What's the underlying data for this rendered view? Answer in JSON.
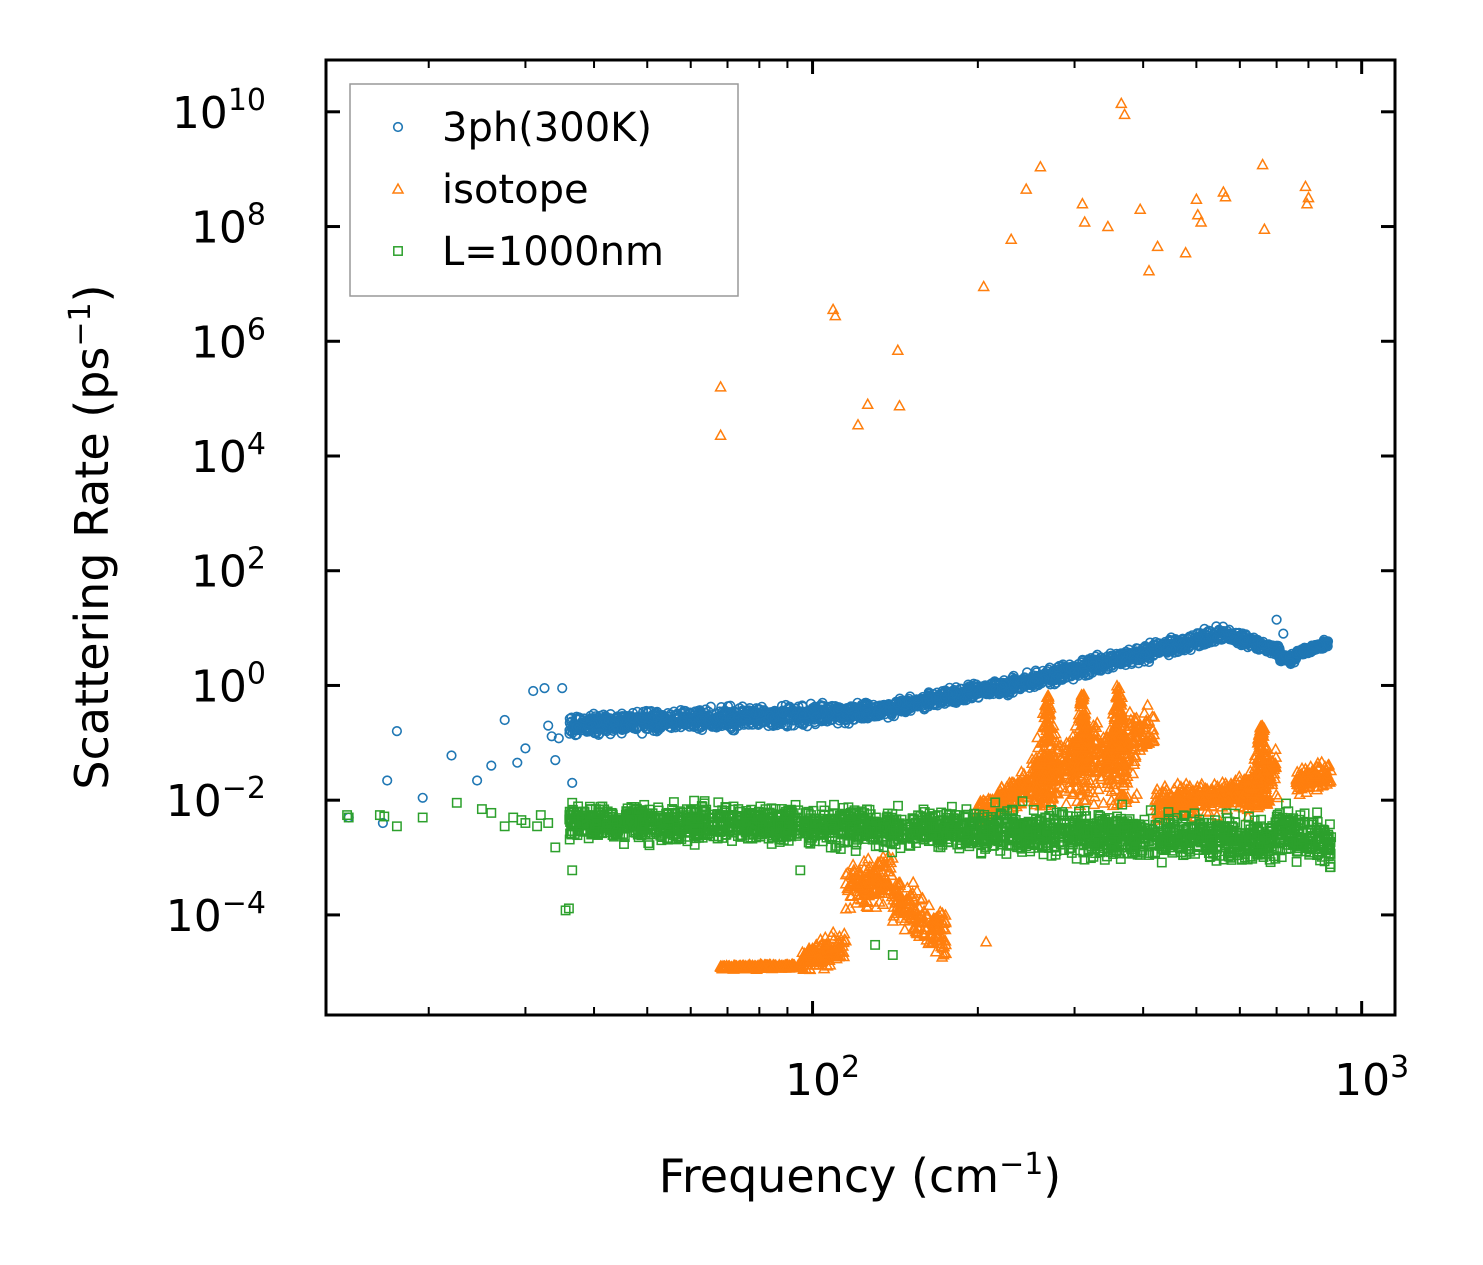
{
  "chart_data": {
    "type": "scatter",
    "xscale": "log",
    "yscale": "log",
    "xlim": [
      13,
      1150
    ],
    "ylim": [
      1.8e-06,
      80000000000
    ],
    "xlabel": "Frequency (cm",
    "xlabel_sup": "−1",
    "xlabel_close": ")",
    "ylabel": "Scattering Rate (ps",
    "ylabel_sup": "−1",
    "ylabel_close": ")",
    "legend_position": "upper-left",
    "x_major_ticks": [
      {
        "value": 100,
        "base": "10",
        "exp": "2"
      },
      {
        "value": 1000,
        "base": "10",
        "exp": "3"
      }
    ],
    "x_minor_ticks": [
      20,
      30,
      40,
      50,
      60,
      70,
      80,
      90,
      200,
      300,
      400,
      500,
      600,
      700,
      800,
      900
    ],
    "y_major_ticks": [
      {
        "value": 0.0001,
        "base": "10",
        "exp": "−4"
      },
      {
        "value": 0.01,
        "base": "10",
        "exp": "−2"
      },
      {
        "value": 1,
        "base": "10",
        "exp": "0"
      },
      {
        "value": 100,
        "base": "10",
        "exp": "2"
      },
      {
        "value": 10000,
        "base": "10",
        "exp": "4"
      },
      {
        "value": 1000000,
        "base": "10",
        "exp": "6"
      },
      {
        "value": 100000000,
        "base": "10",
        "exp": "8"
      },
      {
        "value": 10000000000,
        "base": "10",
        "exp": "10"
      }
    ],
    "series": [
      {
        "name": "3ph(300K)",
        "marker": "circle",
        "color": "#1f77b4",
        "sparse_points": [
          [
            14.3,
            0.005
          ],
          [
            16.5,
            0.004
          ],
          [
            17.5,
            0.16
          ],
          [
            16.8,
            0.022
          ],
          [
            19.5,
            0.011
          ],
          [
            22,
            0.06
          ],
          [
            24.5,
            0.022
          ],
          [
            26,
            0.04
          ],
          [
            27.5,
            0.25
          ],
          [
            29,
            0.045
          ],
          [
            30,
            0.08
          ],
          [
            31,
            0.8
          ],
          [
            32.5,
            0.9
          ],
          [
            33,
            0.2
          ],
          [
            33.5,
            0.13
          ],
          [
            34,
            0.05
          ],
          [
            34.5,
            0.12
          ],
          [
            35,
            0.9
          ],
          [
            36.5,
            0.02
          ]
        ],
        "dense_bands": [
          {
            "x": [
              36,
              130
            ],
            "y": [
              0.2,
              0.35
            ],
            "spread_decades": 0.25
          },
          {
            "x": [
              130,
              250
            ],
            "y": [
              0.35,
              1.2
            ],
            "spread_decades": 0.2
          },
          {
            "x": [
              250,
              560
            ],
            "y": [
              1.2,
              8.0
            ],
            "spread_decades": 0.2
          },
          {
            "x": [
              560,
              710
            ],
            "y": [
              8.0,
              4.0
            ],
            "spread_decades": 0.15
          },
          {
            "x": [
              710,
              760
            ],
            "y": [
              3.0,
              3.0
            ],
            "spread_decades": 0.12
          },
          {
            "x": [
              760,
              870
            ],
            "y": [
              3.5,
              5.5
            ],
            "spread_decades": 0.1
          }
        ],
        "extra_points": [
          [
            700,
            14.0
          ],
          [
            720,
            8.0
          ],
          [
            740,
            2.5
          ]
        ]
      },
      {
        "name": "isotope",
        "marker": "triangle",
        "color": "#ff7f0e",
        "sparse_points": [
          [
            68,
            160000
          ],
          [
            68,
            23000
          ],
          [
            109,
            3600000
          ],
          [
            110,
            2800000
          ],
          [
            121,
            35000
          ],
          [
            126,
            80000
          ],
          [
            143,
            700000
          ],
          [
            144,
            75000
          ],
          [
            205,
            9000000
          ],
          [
            230,
            60000000
          ],
          [
            245,
            450000000
          ],
          [
            260,
            1100000000
          ],
          [
            310,
            250000000
          ],
          [
            313,
            120000000
          ],
          [
            345,
            100000000
          ],
          [
            365,
            14000000000
          ],
          [
            370,
            9000000000
          ],
          [
            395,
            200000000
          ],
          [
            425,
            45000000
          ],
          [
            410,
            17000000
          ],
          [
            478,
            35000000
          ],
          [
            500,
            300000000
          ],
          [
            503,
            160000000
          ],
          [
            510,
            120000000
          ],
          [
            560,
            400000000
          ],
          [
            565,
            330000000
          ],
          [
            660,
            1200000000
          ],
          [
            665,
            90000000
          ],
          [
            790,
            500000000
          ],
          [
            795,
            250000000
          ],
          [
            800,
            320000000
          ],
          [
            207,
            3.4e-05
          ]
        ],
        "dense_bands": [
          {
            "x": [
              68,
              95
            ],
            "y": [
              1.2e-05,
              1.3e-05
            ],
            "spread_decades": 0.05
          },
          {
            "x": [
              95,
              115
            ],
            "y": [
              1.5e-05,
              3e-05
            ],
            "spread_decades": 0.35
          },
          {
            "x": [
              115,
              140
            ],
            "y": [
              0.0003,
              0.0005
            ],
            "spread_decades": 0.6
          },
          {
            "x": [
              140,
              175
            ],
            "y": [
              0.0002,
              4e-05
            ],
            "spread_decades": 0.6
          },
          {
            "x": [
              200,
              250
            ],
            "y": [
              0.006,
              0.02
            ],
            "spread_decades": 0.35
          },
          {
            "x": [
              250,
              330
            ],
            "y": [
              0.02,
              0.1
            ],
            "spread_decades": 0.6
          },
          {
            "x": [
              330,
              420
            ],
            "y": [
              0.05,
              0.2
            ],
            "spread_decades": 0.6
          },
          {
            "x": [
              420,
              620
            ],
            "y": [
              0.008,
              0.015
            ],
            "spread_decades": 0.4
          },
          {
            "x": [
              620,
              700
            ],
            "y": [
              0.01,
              0.05
            ],
            "spread_decades": 0.5
          },
          {
            "x": [
              760,
              880
            ],
            "y": [
              0.02,
              0.03
            ],
            "spread_decades": 0.3
          }
        ],
        "spikes": [
          {
            "x": 268,
            "peak": 0.7
          },
          {
            "x": 310,
            "peak": 0.7
          },
          {
            "x": 360,
            "peak": 1.0
          },
          {
            "x": 658,
            "peak": 0.2
          }
        ]
      },
      {
        "name": "L=1000nm",
        "marker": "square",
        "color": "#2ca02c",
        "sparse_points": [
          [
            14.2,
            0.0055
          ],
          [
            14.3,
            0.005
          ],
          [
            16.3,
            0.0055
          ],
          [
            16.6,
            0.0052
          ],
          [
            17.5,
            0.0035
          ],
          [
            19.5,
            0.005
          ],
          [
            22.5,
            0.009
          ],
          [
            25,
            0.007
          ],
          [
            26,
            0.006
          ],
          [
            27.5,
            0.0035
          ],
          [
            28.5,
            0.005
          ],
          [
            29.5,
            0.0045
          ],
          [
            30,
            0.004
          ],
          [
            31.5,
            0.0035
          ],
          [
            32,
            0.0055
          ],
          [
            33,
            0.004
          ],
          [
            34,
            0.0015
          ],
          [
            35.5,
            0.00012
          ],
          [
            36,
            0.00013
          ],
          [
            36.5,
            0.0006
          ],
          [
            36.5,
            0.009
          ],
          [
            95,
            0.0006
          ],
          [
            130,
            3e-05
          ],
          [
            140,
            2e-05
          ]
        ],
        "dense_bands": [
          {
            "x": [
              36,
              60
            ],
            "y": [
              0.004,
              0.004
            ],
            "spread_decades": 0.45
          },
          {
            "x": [
              60,
              200
            ],
            "y": [
              0.004,
              0.003
            ],
            "spread_decades": 0.45
          },
          {
            "x": [
              200,
              700
            ],
            "y": [
              0.003,
              0.002
            ],
            "spread_decades": 0.55
          },
          {
            "x": [
              700,
              880
            ],
            "y": [
              0.003,
              0.0015
            ],
            "spread_decades": 0.6
          }
        ]
      }
    ]
  }
}
